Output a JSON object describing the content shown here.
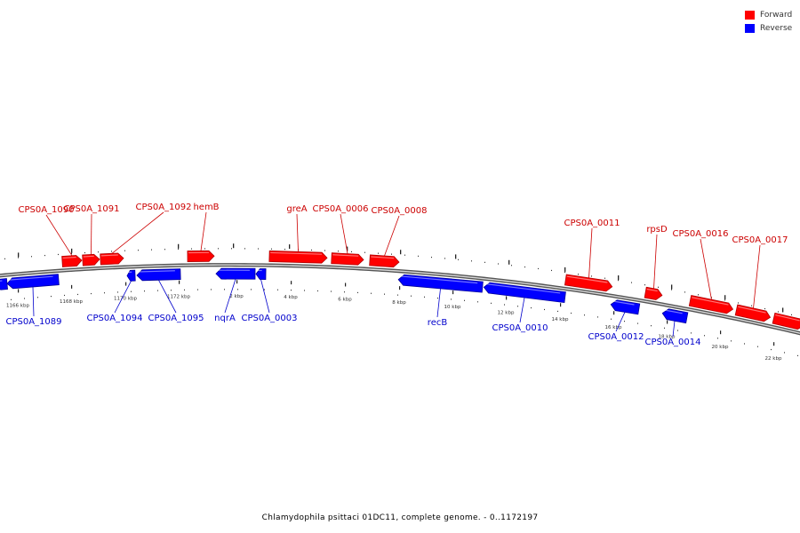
{
  "legend": {
    "forward_label": "Forward",
    "reverse_label": "Reverse",
    "forward_color": "#ff0000",
    "reverse_color": "#0000ff"
  },
  "caption": "Chlamydophila psittaci 01DC11, complete genome. - 0..1172197",
  "scale_labels": [
    "1166 kbp",
    "1168 kbp",
    "1170 kbp",
    "1172 kbp",
    "2 kbp",
    "4 kbp",
    "6 kbp",
    "8 kbp",
    "10 kbp",
    "12 kbp",
    "14 kbp",
    "16 kbp",
    "18 kbp",
    "20 kbp",
    "22 kbp"
  ],
  "forward_genes": [
    "CPS0A_1090",
    "CPS0A_1091",
    "CPS0A_1092",
    "hemB",
    "greA",
    "CPS0A_0006",
    "CPS0A_0008",
    "CPS0A_0011",
    "rpsD",
    "CPS0A_0016",
    "CPS0A_0017"
  ],
  "reverse_genes": [
    "CPS0A_1089",
    "CPS0A_1094",
    "CPS0A_1095",
    "nqrA",
    "CPS0A_0003",
    "recB",
    "CPS0A_0010",
    "CPS0A_0012",
    "CPS0A_0014"
  ]
}
